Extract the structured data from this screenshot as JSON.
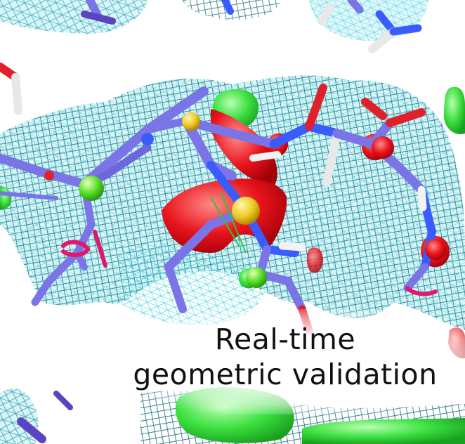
{
  "caption": {
    "line1": "Real-time",
    "line2": "geometric validation"
  },
  "colors": {
    "background": "#ffffff",
    "density_mesh": "#2aa6b8",
    "density_mesh_light": "#7fe6f0",
    "carbon_bond": "#7b74e6",
    "nitrogen": "#3a5cff",
    "oxygen": "#e0202a",
    "sulfur": "#f0d030",
    "hydrogen": "#f4f4f4",
    "difference_positive": "#33dd44",
    "difference_negative": "#e8141c",
    "rotamer_marker": "#e0186c",
    "chlorine_atom": "#55dd33"
  },
  "icons": [
    "molecular-model",
    "electron-density-mesh",
    "rotamer-marker"
  ]
}
